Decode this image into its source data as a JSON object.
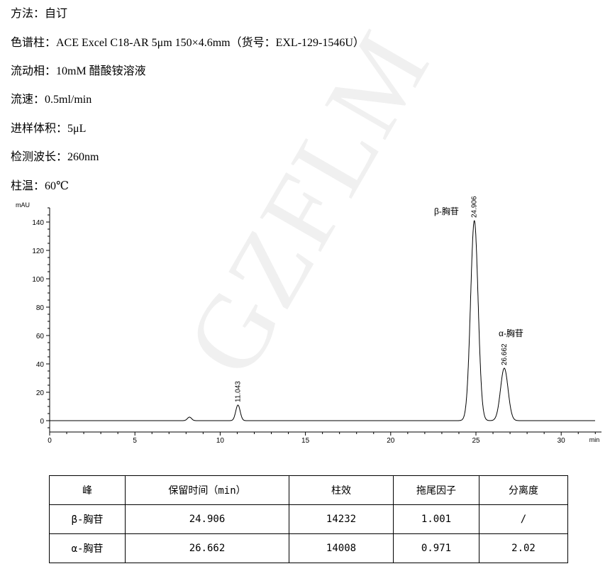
{
  "watermark": "GZFLM",
  "method": [
    "方法：自订",
    "色谱柱：ACE Excel C18-AR 5μm 150×4.6mm（货号：EXL-129-1546U）",
    "流动相：10mM 醋酸铵溶液",
    "流速：0.5ml/min",
    "进样体积：5μL",
    "检测波长：260nm",
    "柱温：60℃"
  ],
  "chart_data": {
    "type": "line",
    "ylabel": "mAU",
    "xlabel": "min",
    "xlim": [
      0,
      32
    ],
    "ylim": [
      -8,
      150
    ],
    "xticks": [
      0,
      5,
      10,
      15,
      20,
      25,
      30
    ],
    "yticks": [
      0,
      20,
      40,
      60,
      80,
      100,
      120,
      140
    ],
    "line_color": "#000000",
    "peaks": [
      {
        "rt": 8.2,
        "height": 2.5,
        "width": 0.12,
        "label": ""
      },
      {
        "rt": 11.043,
        "height": 11,
        "width": 0.13,
        "label": "11.043"
      },
      {
        "rt": 24.906,
        "height": 141,
        "width": 0.22,
        "label": "24.906",
        "name": "β-胸苷"
      },
      {
        "rt": 26.662,
        "height": 37,
        "width": 0.22,
        "label": "26.662",
        "name": "α-胸苷"
      }
    ]
  },
  "table": {
    "headers": [
      "峰",
      "保留时间（min）",
      "柱效",
      "拖尾因子",
      "分离度"
    ],
    "rows": [
      [
        "β-胸苷",
        "24.906",
        "14232",
        "1.001",
        "/"
      ],
      [
        "α-胸苷",
        "26.662",
        "14008",
        "0.971",
        "2.02"
      ]
    ]
  }
}
